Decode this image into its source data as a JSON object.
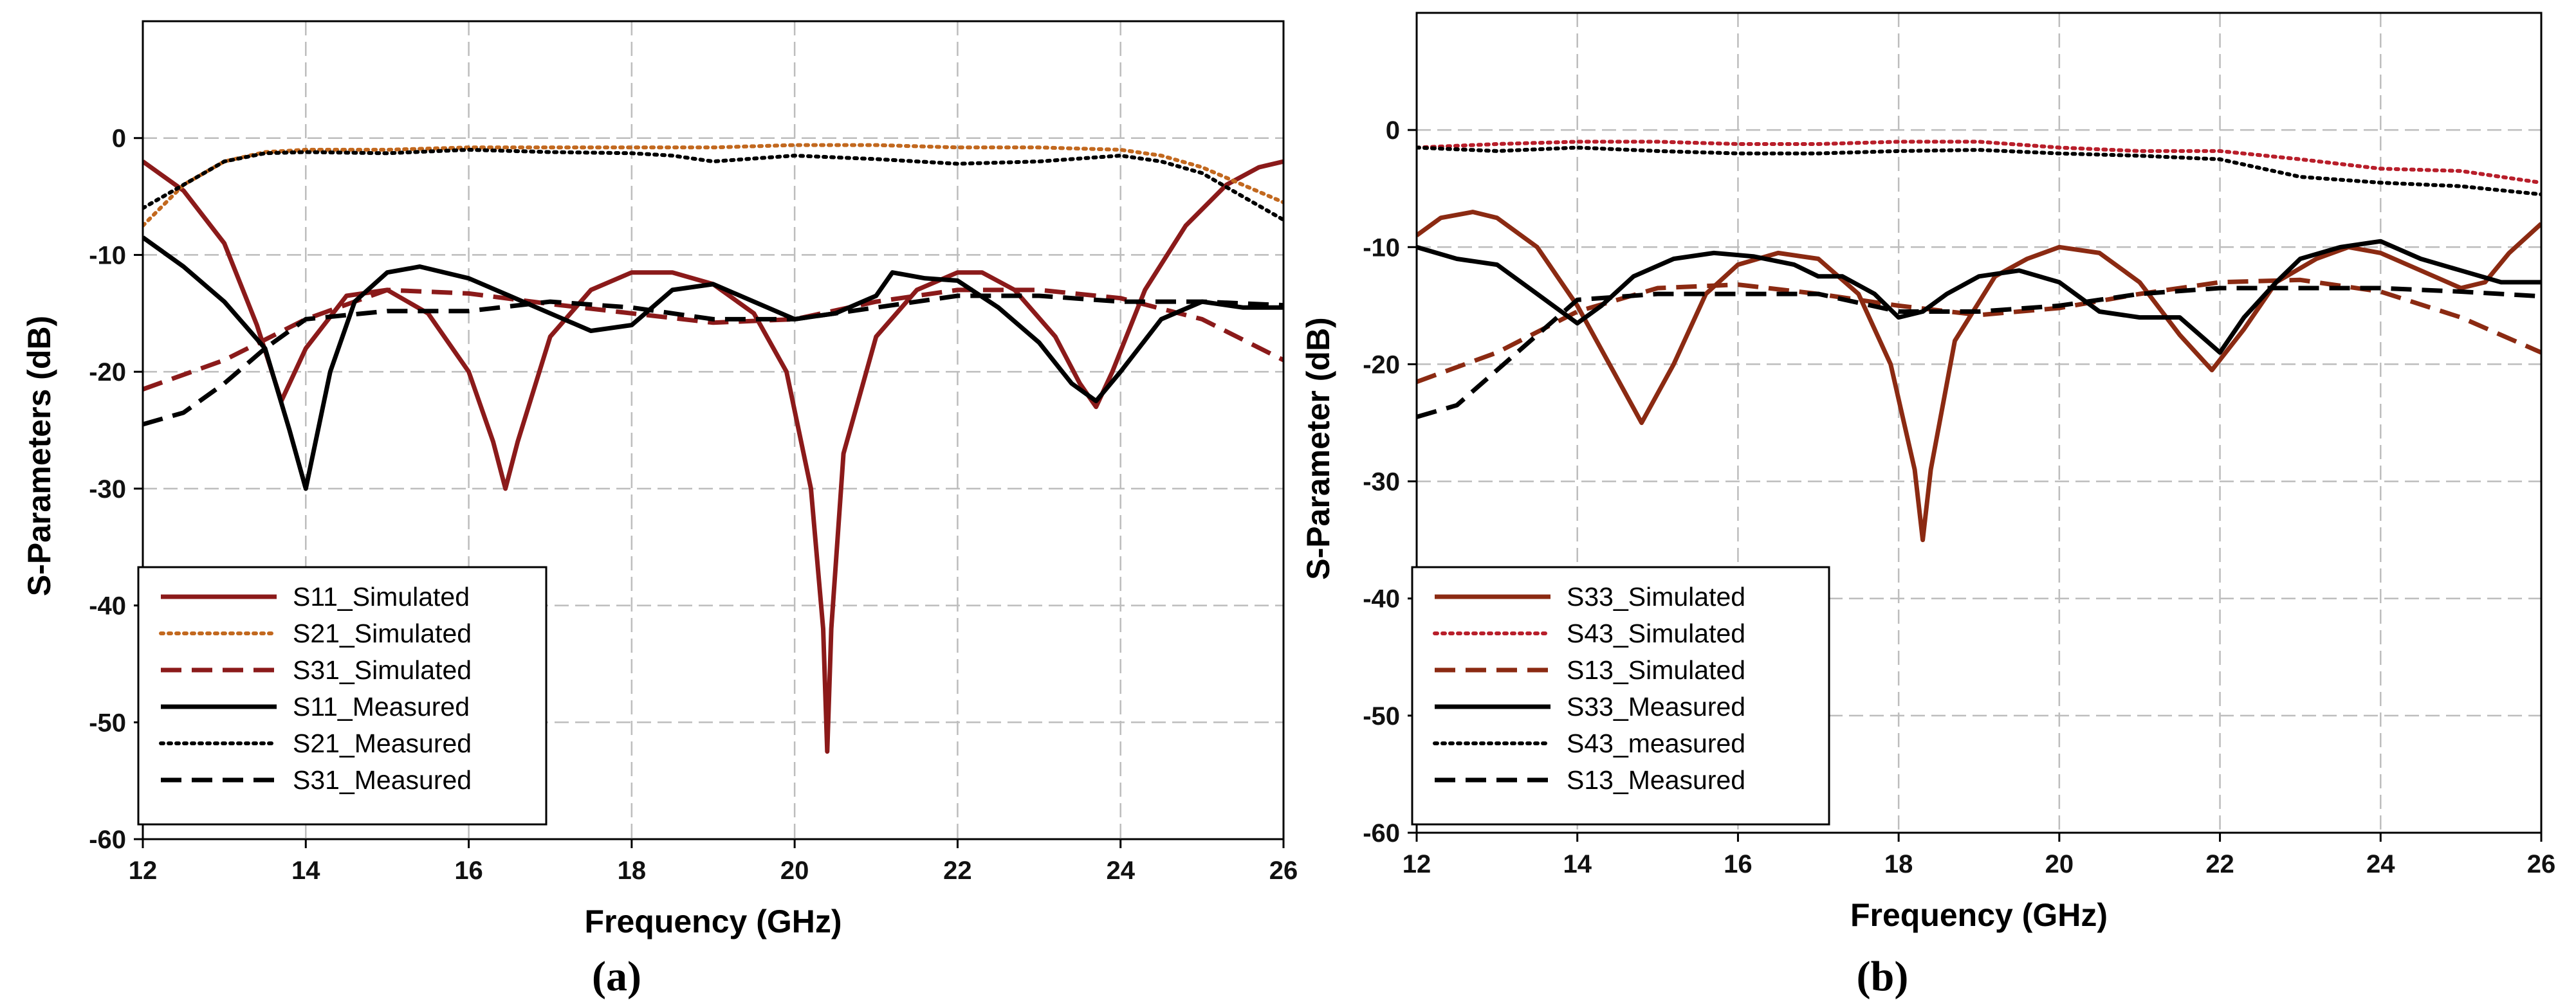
{
  "chart_data": [
    {
      "type": "line",
      "panel_label": "a",
      "title": "",
      "xlabel": "Frequency (GHz)",
      "ylabel": "S-Parameters (dB)",
      "xlim": [
        12,
        26
      ],
      "ylim": [
        -60,
        10
      ],
      "xticks": [
        12,
        14,
        16,
        18,
        20,
        22,
        24,
        26
      ],
      "yticks": [
        -60,
        -50,
        -40,
        -30,
        -20,
        -10,
        0
      ],
      "grid": true,
      "legend_position": "bottom-left",
      "series": [
        {
          "name": "S11_Simulated",
          "color": "#8b1a1a",
          "style": "solid",
          "x": [
            12,
            12.5,
            13,
            13.4,
            13.7,
            14,
            14.5,
            15,
            15.5,
            16,
            16.3,
            16.45,
            16.6,
            17,
            17.5,
            18,
            18.5,
            19,
            19.5,
            19.9,
            20.2,
            20.35,
            20.4,
            20.45,
            20.6,
            21,
            21.5,
            22,
            22.3,
            22.7,
            23.2,
            23.5,
            23.7,
            23.9,
            24.3,
            24.8,
            25.3,
            25.7,
            26
          ],
          "y": [
            -2,
            -4.5,
            -9,
            -16,
            -22.5,
            -18,
            -13.5,
            -13,
            -15,
            -20,
            -26,
            -30,
            -26,
            -17,
            -13,
            -11.5,
            -11.5,
            -12.5,
            -15,
            -20,
            -30,
            -42,
            -52.5,
            -42,
            -27,
            -17,
            -13,
            -11.5,
            -11.5,
            -13,
            -17,
            -21,
            -23,
            -20,
            -13,
            -7.5,
            -4,
            -2.5,
            -2
          ]
        },
        {
          "name": "S21_Simulated",
          "color": "#c2681e",
          "style": "dotted",
          "x": [
            12,
            12.5,
            13,
            13.5,
            14,
            15,
            16,
            17,
            18,
            19,
            20,
            21,
            22,
            23,
            24,
            24.5,
            25,
            25.5,
            26
          ],
          "y": [
            -7.5,
            -4,
            -2,
            -1.2,
            -1,
            -1,
            -0.8,
            -0.8,
            -0.8,
            -0.8,
            -0.6,
            -0.6,
            -0.8,
            -0.8,
            -1,
            -1.5,
            -2.5,
            -4,
            -5.5
          ]
        },
        {
          "name": "S31_Simulated",
          "color": "#8b1a1a",
          "style": "dashed",
          "x": [
            12,
            13,
            14,
            15,
            16,
            17,
            18,
            19,
            20,
            21,
            22,
            23,
            24,
            25,
            26
          ],
          "y": [
            -21.5,
            -19,
            -15.5,
            -13,
            -13.3,
            -14.2,
            -15,
            -15.8,
            -15.5,
            -14,
            -13,
            -13,
            -13.7,
            -15.5,
            -19
          ]
        },
        {
          "name": "S11_Measured",
          "color": "#000000",
          "style": "solid",
          "x": [
            12,
            12.5,
            13,
            13.5,
            13.8,
            14,
            14.3,
            14.6,
            15,
            15.4,
            16,
            16.5,
            17,
            17.5,
            18,
            18.5,
            19,
            19.5,
            20,
            20.5,
            21,
            21.2,
            21.6,
            22,
            22.5,
            23,
            23.4,
            23.7,
            24,
            24.5,
            25,
            25.5,
            26
          ],
          "y": [
            -8.5,
            -11,
            -14,
            -18,
            -25,
            -30,
            -20,
            -14,
            -11.5,
            -11,
            -12,
            -13.5,
            -15,
            -16.5,
            -16,
            -13,
            -12.5,
            -14,
            -15.5,
            -15,
            -13.5,
            -11.5,
            -12,
            -12.2,
            -14.5,
            -17.5,
            -21,
            -22.5,
            -20,
            -15.5,
            -14,
            -14.5,
            -14.5
          ]
        },
        {
          "name": "S21_Measured",
          "color": "#000000",
          "style": "dotted",
          "x": [
            12,
            12.5,
            13,
            13.5,
            14,
            15,
            16,
            17,
            18,
            18.5,
            19,
            20,
            21,
            22,
            23,
            24,
            24.5,
            25,
            25.5,
            26
          ],
          "y": [
            -6,
            -4,
            -2,
            -1.3,
            -1.2,
            -1.3,
            -1,
            -1.2,
            -1.3,
            -1.5,
            -2,
            -1.5,
            -1.8,
            -2.2,
            -2,
            -1.5,
            -2,
            -3,
            -5,
            -7
          ]
        },
        {
          "name": "S31_Measured",
          "color": "#000000",
          "style": "dashed",
          "x": [
            12,
            12.5,
            13,
            13.5,
            14,
            15,
            16,
            17,
            18,
            19,
            20,
            21,
            22,
            23,
            24,
            25,
            26
          ],
          "y": [
            -24.5,
            -23.5,
            -21,
            -18,
            -15.5,
            -14.8,
            -14.8,
            -14,
            -14.5,
            -15.5,
            -15.5,
            -14.5,
            -13.5,
            -13.5,
            -14,
            -14,
            -14.3
          ]
        }
      ]
    },
    {
      "type": "line",
      "panel_label": "b",
      "title": "",
      "xlabel": "Frequency (GHz)",
      "ylabel": "S-Parameter (dB)",
      "xlim": [
        12,
        26
      ],
      "ylim": [
        -60,
        10
      ],
      "xticks": [
        12,
        14,
        16,
        18,
        20,
        22,
        24,
        26
      ],
      "yticks": [
        -60,
        -50,
        -40,
        -30,
        -20,
        -10,
        0
      ],
      "grid": true,
      "legend_position": "bottom-left",
      "series": [
        {
          "name": "S33_Simulated",
          "color": "#8b2a12",
          "style": "solid",
          "x": [
            12,
            12.3,
            12.7,
            13,
            13.5,
            14,
            14.4,
            14.8,
            15.2,
            15.6,
            16,
            16.5,
            17,
            17.5,
            17.9,
            18.2,
            18.3,
            18.4,
            18.7,
            19.2,
            19.6,
            20,
            20.5,
            21,
            21.5,
            21.9,
            22.3,
            22.7,
            23.2,
            23.6,
            24,
            24.5,
            25,
            25.3,
            25.6,
            26
          ],
          "y": [
            -9,
            -7.5,
            -7,
            -7.5,
            -10,
            -15,
            -20,
            -25,
            -20,
            -14,
            -11.5,
            -10.5,
            -11,
            -14,
            -20,
            -29,
            -35,
            -29,
            -18,
            -12.5,
            -11,
            -10,
            -10.5,
            -13,
            -17.5,
            -20.5,
            -17,
            -13,
            -11,
            -10,
            -10.5,
            -12,
            -13.5,
            -13,
            -10.5,
            -8
          ]
        },
        {
          "name": "S43_Simulated",
          "color": "#b81e2a",
          "style": "dotted",
          "x": [
            12,
            13,
            14,
            15,
            16,
            17,
            18,
            19,
            20,
            21,
            22,
            23,
            24,
            25,
            26
          ],
          "y": [
            -1.5,
            -1.2,
            -1,
            -1,
            -1.2,
            -1.2,
            -1,
            -1,
            -1.5,
            -1.8,
            -1.8,
            -2.5,
            -3.3,
            -3.5,
            -4.5
          ]
        },
        {
          "name": "S13_Simulated",
          "color": "#8b2a12",
          "style": "dashed",
          "x": [
            12,
            13,
            14,
            15,
            16,
            17,
            18,
            19,
            20,
            21,
            22,
            23,
            24,
            25,
            26
          ],
          "y": [
            -21.5,
            -19,
            -15.5,
            -13.5,
            -13.2,
            -14,
            -15,
            -15.8,
            -15.2,
            -14,
            -13,
            -12.8,
            -13.8,
            -16,
            -19
          ]
        },
        {
          "name": "S33_Measured",
          "color": "#000000",
          "style": "solid",
          "x": [
            12,
            12.5,
            13,
            13.5,
            14,
            14.3,
            14.7,
            15.2,
            15.7,
            16.2,
            16.7,
            17,
            17.3,
            17.7,
            18,
            18.3,
            18.6,
            19,
            19.5,
            20,
            20.5,
            21,
            21.5,
            22,
            22.3,
            22.7,
            23,
            23.5,
            24,
            24.5,
            25,
            25.5,
            26
          ],
          "y": [
            -10,
            -11,
            -11.5,
            -14,
            -16.5,
            -15,
            -12.5,
            -11,
            -10.5,
            -10.8,
            -11.5,
            -12.5,
            -12.5,
            -14,
            -16,
            -15.5,
            -14,
            -12.5,
            -12,
            -13,
            -15.5,
            -16,
            -16,
            -19,
            -16,
            -13,
            -11,
            -10,
            -9.5,
            -11,
            -12,
            -13,
            -13
          ]
        },
        {
          "name": "S43_measured",
          "color": "#000000",
          "style": "dotted",
          "x": [
            12,
            13,
            14,
            15,
            16,
            17,
            18,
            19,
            20,
            21,
            22,
            23,
            24,
            25,
            26
          ],
          "y": [
            -1.5,
            -1.8,
            -1.5,
            -1.8,
            -2,
            -2,
            -1.8,
            -1.7,
            -2,
            -2.2,
            -2.5,
            -4,
            -4.5,
            -4.8,
            -5.5
          ]
        },
        {
          "name": "S13_Measured",
          "color": "#000000",
          "style": "dashed",
          "x": [
            12,
            12.5,
            13,
            13.5,
            14,
            15,
            16,
            17,
            18,
            19,
            20,
            21,
            22,
            23,
            24,
            25,
            26
          ],
          "y": [
            -24.5,
            -23.5,
            -20.5,
            -17.5,
            -14.5,
            -14,
            -14,
            -14,
            -15.5,
            -15.5,
            -15,
            -14,
            -13.5,
            -13.5,
            -13.5,
            -13.8,
            -14.2
          ]
        }
      ]
    }
  ]
}
